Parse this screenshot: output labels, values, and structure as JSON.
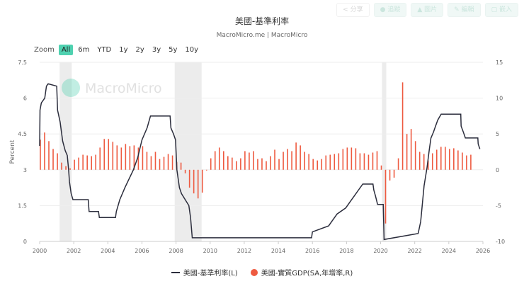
{
  "toolbar": {
    "buttons": [
      {
        "label": "分享",
        "icon": "share-icon"
      },
      {
        "label": "追蹤",
        "icon": "bell-icon"
      },
      {
        "label": "圖片",
        "icon": "user-icon"
      },
      {
        "label": "編輯",
        "icon": "pencil-icon"
      },
      {
        "label": "嵌入",
        "icon": "embed-icon"
      }
    ]
  },
  "range_selector": {
    "label": "Zoom",
    "buttons": [
      "All",
      "6m",
      "YTD",
      "1y",
      "2y",
      "3y",
      "5y",
      "10y"
    ],
    "active": "All",
    "active_color": "#4fd1b0"
  },
  "watermark": "MacroMicro",
  "chart_data": {
    "type": "line+bar",
    "title": "美國-基準利率",
    "subtitle": "MacroMicro.me | MacroMicro",
    "ylabel": "Percent",
    "ylim": [
      0,
      7.5
    ],
    "y2lim": [
      -10,
      15
    ],
    "xlim": [
      2000,
      2026
    ],
    "x_ticks": [
      "2000",
      "2002",
      "2004",
      "2006",
      "2008",
      "2010",
      "2012",
      "2014",
      "2016",
      "2018",
      "2020",
      "2022",
      "2024",
      "2026"
    ],
    "y_ticks": [
      "0",
      "1.5",
      "3",
      "4.5",
      "6",
      "7.5"
    ],
    "y2_ticks": [
      "-10",
      "-5",
      "0",
      "5",
      "10",
      "15"
    ],
    "grid": true,
    "legend_placement": "bottom",
    "recessions": [
      [
        2001.17,
        2001.88
      ],
      [
        2007.92,
        2009.5
      ],
      [
        2020.08,
        2020.33
      ]
    ],
    "series": [
      {
        "name": "美國-基準利率(L)",
        "type": "line",
        "axis": "left",
        "color": "#2b2d3c",
        "points": [
          [
            2000.0,
            4.0
          ],
          [
            2000.02,
            5.5
          ],
          [
            2000.1,
            5.8
          ],
          [
            2000.3,
            6.0
          ],
          [
            2000.4,
            6.5
          ],
          [
            2000.5,
            6.6
          ],
          [
            2001.0,
            6.5
          ],
          [
            2001.05,
            5.5
          ],
          [
            2001.2,
            5.0
          ],
          [
            2001.35,
            4.2
          ],
          [
            2001.5,
            3.8
          ],
          [
            2001.62,
            3.6
          ],
          [
            2001.7,
            3.0
          ],
          [
            2001.75,
            2.5
          ],
          [
            2001.85,
            2.0
          ],
          [
            2001.95,
            1.75
          ],
          [
            2002.85,
            1.75
          ],
          [
            2002.9,
            1.25
          ],
          [
            2003.45,
            1.25
          ],
          [
            2003.5,
            1.0
          ],
          [
            2004.45,
            1.0
          ],
          [
            2004.5,
            1.25
          ],
          [
            2004.7,
            1.75
          ],
          [
            2005.0,
            2.25
          ],
          [
            2005.5,
            3.0
          ],
          [
            2005.75,
            3.5
          ],
          [
            2006.0,
            4.25
          ],
          [
            2006.3,
            4.75
          ],
          [
            2006.5,
            5.25
          ],
          [
            2007.65,
            5.25
          ],
          [
            2007.7,
            4.75
          ],
          [
            2007.85,
            4.5
          ],
          [
            2007.97,
            4.25
          ],
          [
            2008.05,
            3.0
          ],
          [
            2008.2,
            2.25
          ],
          [
            2008.32,
            2.0
          ],
          [
            2008.75,
            1.5
          ],
          [
            2008.85,
            1.0
          ],
          [
            2008.95,
            0.15
          ],
          [
            2015.95,
            0.15
          ],
          [
            2016.0,
            0.4
          ],
          [
            2016.95,
            0.65
          ],
          [
            2017.2,
            0.9
          ],
          [
            2017.45,
            1.15
          ],
          [
            2017.95,
            1.4
          ],
          [
            2018.2,
            1.65
          ],
          [
            2018.45,
            1.9
          ],
          [
            2018.7,
            2.15
          ],
          [
            2018.95,
            2.4
          ],
          [
            2019.55,
            2.4
          ],
          [
            2019.6,
            2.15
          ],
          [
            2019.7,
            1.9
          ],
          [
            2019.82,
            1.55
          ],
          [
            2020.15,
            1.55
          ],
          [
            2020.2,
            0.08
          ],
          [
            2022.2,
            0.33
          ],
          [
            2022.35,
            0.83
          ],
          [
            2022.45,
            1.58
          ],
          [
            2022.55,
            2.33
          ],
          [
            2022.72,
            3.08
          ],
          [
            2022.85,
            3.83
          ],
          [
            2022.95,
            4.33
          ],
          [
            2023.1,
            4.58
          ],
          [
            2023.22,
            4.83
          ],
          [
            2023.35,
            5.08
          ],
          [
            2023.55,
            5.33
          ],
          [
            2024.7,
            5.33
          ],
          [
            2024.72,
            4.83
          ],
          [
            2024.85,
            4.58
          ],
          [
            2024.97,
            4.33
          ],
          [
            2025.7,
            4.33
          ],
          [
            2025.72,
            4.08
          ],
          [
            2025.82,
            3.87
          ]
        ]
      },
      {
        "name": "美國-實質GDP(SA,年增率,R)",
        "type": "bar",
        "axis": "right",
        "color": "#ee5a40",
        "x_start": 2000.0,
        "frequency": "quarterly",
        "values": [
          4.2,
          5.2,
          4.0,
          2.9,
          2.3,
          1.0,
          0.5,
          0.2,
          1.4,
          1.7,
          2.1,
          2.0,
          1.9,
          2.1,
          3.1,
          4.3,
          4.3,
          3.9,
          3.4,
          3.1,
          3.6,
          3.3,
          3.4,
          3.1,
          3.3,
          2.5,
          1.9,
          2.5,
          1.5,
          1.8,
          2.2,
          2.0,
          1.1,
          1.0,
          -0.5,
          -2.5,
          -3.3,
          -4.0,
          -3.2,
          -0.1,
          1.6,
          2.6,
          3.1,
          2.6,
          1.9,
          1.7,
          1.2,
          1.6,
          2.6,
          2.4,
          2.6,
          1.5,
          1.6,
          1.2,
          1.9,
          2.8,
          1.5,
          2.5,
          2.9,
          2.6,
          3.8,
          3.4,
          2.5,
          2.2,
          1.5,
          1.3,
          1.5,
          2.0,
          2.1,
          2.2,
          2.3,
          2.9,
          3.1,
          3.1,
          3.0,
          2.3,
          2.3,
          2.1,
          2.4,
          2.6,
          0.6,
          -7.5,
          -1.5,
          -1.1,
          1.6,
          12.2,
          5.0,
          5.7,
          4.0,
          2.5,
          2.2,
          1.3,
          2.3,
          2.8,
          3.2,
          3.2,
          2.9,
          3.0,
          2.7,
          2.4,
          2.0,
          2.1
        ]
      }
    ]
  }
}
